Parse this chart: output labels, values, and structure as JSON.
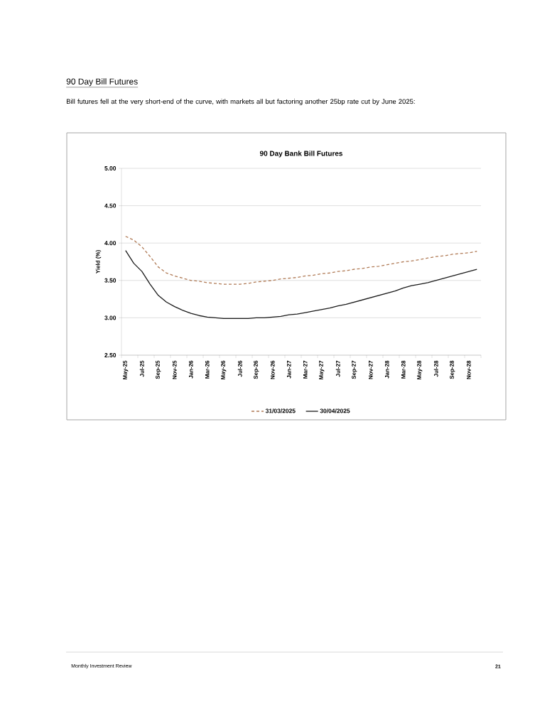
{
  "chart_data": {
    "type": "line",
    "title": "90 Day Bank Bill Futures",
    "ylabel": "Yield (%)",
    "categories": [
      "May-25",
      null,
      "Jul-25",
      null,
      "Sep-25",
      null,
      "Nov-25",
      null,
      "Jan-26",
      null,
      "Mar-26",
      null,
      "May-26",
      null,
      "Jul-26",
      null,
      "Sep-26",
      null,
      "Nov-26",
      null,
      "Jan-27",
      null,
      "Mar-27",
      null,
      "May-27",
      null,
      "Jul-27",
      null,
      "Sep-27",
      null,
      "Nov-27",
      null,
      "Jan-28",
      null,
      "Mar-28",
      null,
      "May-28",
      null,
      "Jul-28",
      null,
      "Sep-28",
      null,
      "Nov-28",
      null
    ],
    "series": [
      {
        "name": "31/03/2025",
        "color": "#b07a55",
        "line_style": "dashed",
        "values": [
          4.09,
          4.04,
          3.95,
          3.82,
          3.68,
          3.6,
          3.56,
          3.53,
          3.5,
          3.49,
          3.47,
          3.46,
          3.45,
          3.45,
          3.45,
          3.46,
          3.48,
          3.49,
          3.5,
          3.52,
          3.53,
          3.54,
          3.56,
          3.57,
          3.59,
          3.6,
          3.62,
          3.63,
          3.65,
          3.66,
          3.68,
          3.69,
          3.71,
          3.73,
          3.75,
          3.76,
          3.78,
          3.8,
          3.82,
          3.83,
          3.85,
          3.86,
          3.87,
          3.89
        ]
      },
      {
        "name": "30/04/2025",
        "color": "#1a1a1a",
        "line_style": "solid",
        "values": [
          3.9,
          3.73,
          3.62,
          3.45,
          3.3,
          3.21,
          3.15,
          3.1,
          3.06,
          3.03,
          3.01,
          3.0,
          2.99,
          2.99,
          2.99,
          2.99,
          3.0,
          3.0,
          3.01,
          3.02,
          3.04,
          3.05,
          3.07,
          3.09,
          3.11,
          3.13,
          3.16,
          3.18,
          3.21,
          3.24,
          3.27,
          3.3,
          3.33,
          3.36,
          3.4,
          3.43,
          3.45,
          3.47,
          3.5,
          3.53,
          3.56,
          3.59,
          3.62,
          3.65
        ]
      }
    ],
    "ylim": [
      2.5,
      5
    ],
    "yticks": [
      {
        "value": 2.5,
        "label": "2.50"
      },
      {
        "value": 3,
        "label": "3.00"
      },
      {
        "value": 3.5,
        "label": "3.50"
      },
      {
        "value": 4,
        "label": "4.00"
      },
      {
        "value": 4.5,
        "label": "4.50"
      },
      {
        "value": 5,
        "label": "5.00"
      }
    ],
    "grid": "y",
    "legend": "bottom",
    "annotations": [
      "90 Day Bill Futures",
      "Bill futures fell at the very short-end of the curve, with markets all but factoring another 25bp rate cut by June 2025:",
      "Monthly Investment Review",
      "21"
    ]
  }
}
